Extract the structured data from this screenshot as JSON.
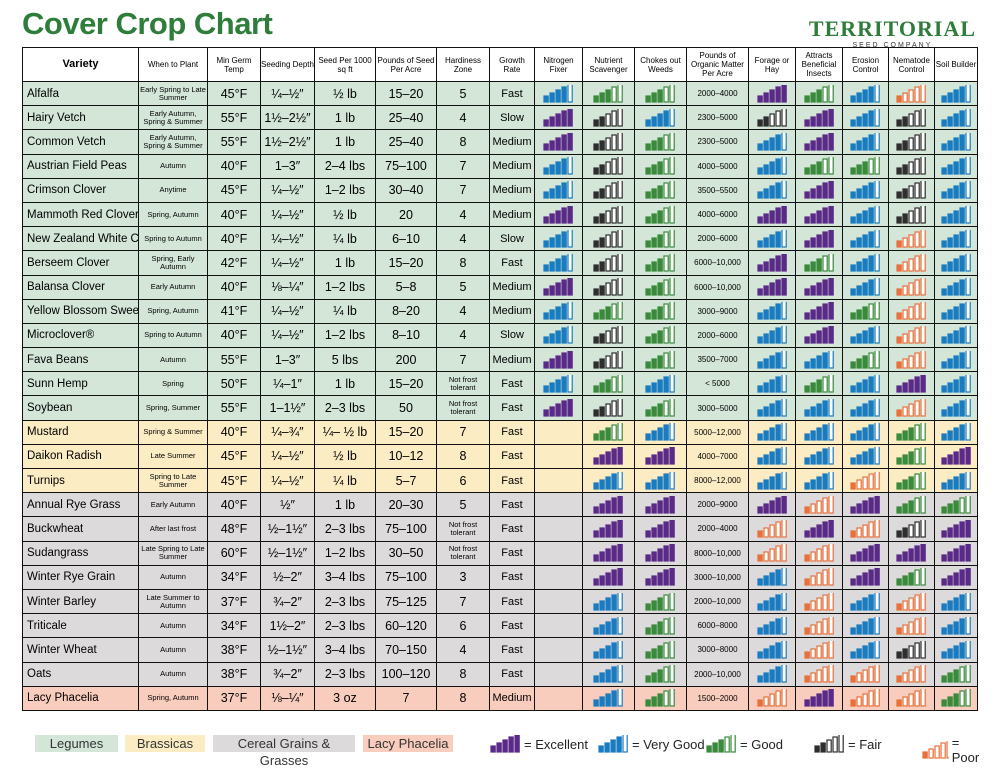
{
  "header": {
    "title": "Cover Crop Chart",
    "logo": "TERRITORIAL",
    "logo_sub": "SEED COMPANY"
  },
  "table": {
    "columns": [
      "Variety",
      "When to Plant",
      "Min Germ Temp",
      "Seeding Depth",
      "Seed Per 1000 sq ft",
      "Pounds of Seed Per Acre",
      "Hardiness Zone",
      "Growth Rate",
      "Nitrogen Fixer",
      "Nutrient Scavenger",
      "Chokes out Weeds",
      "Pounds of Organic Matter Per Acre",
      "Forage or Hay",
      "Attracts Beneficial Insects",
      "Erosion Control",
      "Nematode Control",
      "Soil Builder"
    ],
    "groups": [
      {
        "name": "Legumes",
        "color": "#d3e6d8",
        "rows": [
          {
            "variety": "Alfalfa",
            "when": "Early Spring to Late Summer",
            "temp": "45°F",
            "depth": "¼–½″",
            "seed_1000": "½ lb",
            "seed_acre": "15–20",
            "zone": 5,
            "growth": "Fast",
            "organic_matter": "2000–4000",
            "ratings": [
              4,
              3,
              3,
              5,
              3,
              4,
              1,
              4
            ]
          },
          {
            "variety": "Hairy Vetch",
            "when": "Early Autumn, Spring & Summer",
            "temp": "55°F",
            "depth": "1½–2½″",
            "seed_1000": "1 lb",
            "seed_acre": "25–40",
            "zone": 4,
            "growth": "Slow",
            "organic_matter": "2300–5000",
            "ratings": [
              5,
              2,
              4,
              2,
              5,
              4,
              2,
              4
            ]
          },
          {
            "variety": "Common Vetch",
            "when": "Early Autumn, Spring & Summer",
            "temp": "55°F",
            "depth": "1½–2½″",
            "seed_1000": "1 lb",
            "seed_acre": "25–40",
            "zone": 8,
            "growth": "Medium",
            "organic_matter": "2300–5000",
            "ratings": [
              5,
              2,
              3,
              4,
              5,
              4,
              2,
              4
            ]
          },
          {
            "variety": "Austrian Field Peas",
            "when": "Autumn",
            "temp": "40°F",
            "depth": "1–3″",
            "seed_1000": "2–4 lbs",
            "seed_acre": "75–100",
            "zone": 7,
            "growth": "Medium",
            "organic_matter": "4000–5000",
            "ratings": [
              4,
              2,
              3,
              4,
              3,
              3,
              2,
              4
            ]
          },
          {
            "variety": "Crimson Clover",
            "when": "Anytime",
            "temp": "45°F",
            "depth": "¼–½″",
            "seed_1000": "1–2 lbs",
            "seed_acre": "30–40",
            "zone": 7,
            "growth": "Medium",
            "organic_matter": "3500–5500",
            "ratings": [
              4,
              2,
              3,
              4,
              5,
              4,
              2,
              4
            ]
          },
          {
            "variety": "Mammoth Red Clover",
            "when": "Spring, Autumn",
            "temp": "40°F",
            "depth": "¼–½″",
            "seed_1000": "½ lb",
            "seed_acre": 20,
            "zone": 4,
            "growth": "Medium",
            "organic_matter": "4000–6000",
            "ratings": [
              5,
              2,
              3,
              5,
              5,
              4,
              2,
              4
            ]
          },
          {
            "variety": "New Zealand White Clover",
            "when": "Spring to Autumn",
            "temp": "40°F",
            "depth": "¼–½″",
            "seed_1000": "¼ lb",
            "seed_acre": "6–10",
            "zone": 4,
            "growth": "Slow",
            "organic_matter": "2000–6000",
            "ratings": [
              4,
              2,
              3,
              4,
              5,
              4,
              1,
              4
            ]
          },
          {
            "variety": "Berseem Clover",
            "when": "Spring, Early Autumn",
            "temp": "42°F",
            "depth": "¼–½″",
            "seed_1000": "1 lb",
            "seed_acre": "15–20",
            "zone": 8,
            "growth": "Fast",
            "organic_matter": "6000–10,000",
            "ratings": [
              4,
              2,
              3,
              5,
              3,
              4,
              1,
              4
            ]
          },
          {
            "variety": "Balansa Clover",
            "when": "Early Autumn",
            "temp": "40°F",
            "depth": "⅛–¼″",
            "seed_1000": "1–2 lbs",
            "seed_acre": "5–8",
            "zone": 5,
            "growth": "Medium",
            "organic_matter": "6000–10,000",
            "ratings": [
              5,
              2,
              3,
              5,
              5,
              4,
              1,
              4
            ]
          },
          {
            "variety": "Yellow Blossom Sweet Clover",
            "when": "Spring, Autumn",
            "temp": "41°F",
            "depth": "¼–½″",
            "seed_1000": "¼ lb",
            "seed_acre": "8–20",
            "zone": 4,
            "growth": "Medium",
            "organic_matter": "3000–9000",
            "ratings": [
              4,
              3,
              3,
              4,
              5,
              3,
              1,
              4
            ]
          },
          {
            "variety": "Microclover®",
            "when": "Spring to Autumn",
            "temp": "40°F",
            "depth": "¼–½″",
            "seed_1000": "1–2 lbs",
            "seed_acre": "8–10",
            "zone": 4,
            "growth": "Slow",
            "organic_matter": "2000–6000",
            "ratings": [
              4,
              2,
              3,
              4,
              5,
              4,
              1,
              4
            ]
          },
          {
            "variety": "Fava Beans",
            "when": "Autumn",
            "temp": "55°F",
            "depth": "1–3″",
            "seed_1000": "5 lbs",
            "seed_acre": 200,
            "zone": 7,
            "growth": "Medium",
            "organic_matter": "3500–7000",
            "ratings": [
              5,
              2,
              3,
              4,
              4,
              3,
              1,
              4
            ]
          },
          {
            "variety": "Sunn Hemp",
            "when": "Spring",
            "temp": "50°F",
            "depth": "¼–1″",
            "seed_1000": "1 lb",
            "seed_acre": "15–20",
            "zone": "Not frost tolerant",
            "growth": "Fast",
            "organic_matter": "< 5000",
            "ratings": [
              4,
              3,
              4,
              4,
              3,
              4,
              5,
              4
            ]
          },
          {
            "variety": "Soybean",
            "when": "Spring, Summer",
            "temp": "55°F",
            "depth": "1–1½″",
            "seed_1000": "2–3 lbs",
            "seed_acre": 50,
            "zone": "Not frost tolerant",
            "growth": "Fast",
            "organic_matter": "3000–5000",
            "ratings": [
              5,
              2,
              3,
              4,
              4,
              4,
              1,
              4
            ]
          }
        ]
      },
      {
        "name": "Brassicas",
        "color": "#fcecc4",
        "rows": [
          {
            "variety": "Mustard",
            "when": "Spring & Summer",
            "temp": "40°F",
            "depth": "¼–¾″",
            "seed_1000": "¼– ½ lb",
            "seed_acre": "15–20",
            "zone": 7,
            "growth": "Fast",
            "organic_matter": "5000–12,000",
            "ratings": [
              null,
              3,
              4,
              4,
              4,
              4,
              3,
              4
            ]
          },
          {
            "variety": "Daikon Radish",
            "when": "Late Summer",
            "temp": "45°F",
            "depth": "¼–½″",
            "seed_1000": "½ lb",
            "seed_acre": "10–12",
            "zone": 8,
            "growth": "Fast",
            "organic_matter": "4000–7000",
            "ratings": [
              null,
              5,
              5,
              4,
              4,
              4,
              3,
              5
            ]
          },
          {
            "variety": "Turnips",
            "when": "Spring to Late Summer",
            "temp": "45°F",
            "depth": "¼–½″",
            "seed_1000": "¼ lb",
            "seed_acre": "5–7",
            "zone": 6,
            "growth": "Fast",
            "organic_matter": "8000–12,000",
            "ratings": [
              null,
              4,
              4,
              4,
              4,
              1,
              3,
              4
            ]
          }
        ]
      },
      {
        "name": "Cereal Grains & Grasses",
        "color": "#dcdada",
        "rows": [
          {
            "variety": "Annual Rye Grass",
            "when": "Early Autumn",
            "temp": "40°F",
            "depth": "½″",
            "seed_1000": "1 lb",
            "seed_acre": "20–30",
            "zone": 5,
            "growth": "Fast",
            "organic_matter": "2000–9000",
            "ratings": [
              null,
              5,
              5,
              5,
              1,
              5,
              3,
              3
            ]
          },
          {
            "variety": "Buckwheat",
            "when": "After last frost",
            "temp": "48°F",
            "depth": "½–1½″",
            "seed_1000": "2–3 lbs",
            "seed_acre": "75–100",
            "zone": "Not frost tolerant",
            "growth": "Fast",
            "organic_matter": "2000–4000",
            "ratings": [
              null,
              5,
              5,
              1,
              5,
              1,
              2,
              5
            ]
          },
          {
            "variety": "Sudangrass",
            "when": "Late Spring to Late Summer",
            "temp": "60°F",
            "depth": "½–1½″",
            "seed_1000": "1–2 lbs",
            "seed_acre": "30–50",
            "zone": "Not frost tolerant",
            "growth": "Fast",
            "organic_matter": "8000–10,000",
            "ratings": [
              null,
              5,
              5,
              1,
              1,
              5,
              5,
              5
            ]
          },
          {
            "variety": "Winter Rye Grain",
            "when": "Autumn",
            "temp": "34°F",
            "depth": "½–2″",
            "seed_1000": "3–4 lbs",
            "seed_acre": "75–100",
            "zone": 3,
            "growth": "Fast",
            "organic_matter": "3000–10,000",
            "ratings": [
              null,
              5,
              5,
              4,
              1,
              5,
              3,
              5
            ]
          },
          {
            "variety": "Winter Barley",
            "when": "Late Summer to Autumn",
            "temp": "37°F",
            "depth": "¾–2″",
            "seed_1000": "2–3 lbs",
            "seed_acre": "75–125",
            "zone": 7,
            "growth": "Fast",
            "organic_matter": "2000–10,000",
            "ratings": [
              null,
              4,
              3,
              4,
              1,
              4,
              1,
              4
            ]
          },
          {
            "variety": "Triticale",
            "when": "Autumn",
            "temp": "34°F",
            "depth": "1½–2″",
            "seed_1000": "2–3 lbs",
            "seed_acre": "60–120",
            "zone": 6,
            "growth": "Fast",
            "organic_matter": "6000–8000",
            "ratings": [
              null,
              4,
              3,
              4,
              1,
              4,
              1,
              4
            ]
          },
          {
            "variety": "Winter Wheat",
            "when": "Autumn",
            "temp": "38°F",
            "depth": "½–1½″",
            "seed_1000": "3–4 lbs",
            "seed_acre": "70–150",
            "zone": 4,
            "growth": "Fast",
            "organic_matter": "3000–8000",
            "ratings": [
              null,
              4,
              3,
              4,
              1,
              4,
              2,
              4
            ]
          },
          {
            "variety": "Oats",
            "when": "Autumn",
            "temp": "38°F",
            "depth": "¾–2″",
            "seed_1000": "2–3 lbs",
            "seed_acre": "100–120",
            "zone": 8,
            "growth": "Fast",
            "organic_matter": "2000–10,000",
            "ratings": [
              null,
              4,
              3,
              4,
              1,
              1,
              1,
              3
            ]
          }
        ]
      },
      {
        "name": "Lacy Phacelia",
        "color": "#f8cdbd",
        "rows": [
          {
            "variety": "Lacy Phacelia",
            "when": "Spring, Autumn",
            "temp": "37°F",
            "depth": "⅛–¼″",
            "seed_1000": "3 oz",
            "seed_acre": 7,
            "zone": 8,
            "growth": "Medium",
            "organic_matter": "1500–2000",
            "ratings": [
              null,
              4,
              3,
              1,
              5,
              1,
              1,
              3
            ]
          }
        ]
      }
    ]
  },
  "legend": [
    {
      "level": 5,
      "label": "= Excellent",
      "color": "#5b2a88"
    },
    {
      "level": 4,
      "label": "= Very Good",
      "color": "#1a7cc0"
    },
    {
      "level": 3,
      "label": "= Good",
      "color": "#3a8a3c"
    },
    {
      "level": 2,
      "label": "= Fair",
      "color": "#2e2e2e"
    },
    {
      "level": 1,
      "label": "= Poor",
      "color": "#e8703a"
    }
  ]
}
